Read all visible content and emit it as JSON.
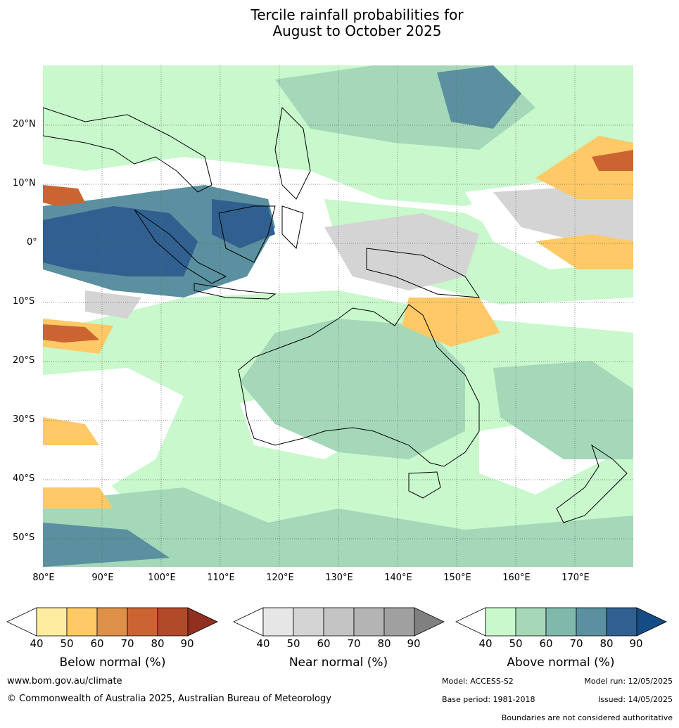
{
  "title_line1": "Tercile rainfall probabilities for",
  "title_line2": "August to October 2025",
  "map": {
    "lat_labels": [
      "20°N",
      "10°N",
      "0°",
      "10°S",
      "20°S",
      "30°S",
      "40°S",
      "50°S"
    ],
    "lon_labels": [
      "80°E",
      "90°E",
      "100°E",
      "110°E",
      "120°E",
      "130°E",
      "140°E",
      "150°E",
      "160°E",
      "170°E"
    ]
  },
  "colorbars": [
    {
      "title": "Below normal (%)",
      "ticks": [
        "40",
        "50",
        "60",
        "70",
        "80",
        "90"
      ],
      "colors": [
        "#ffffff",
        "#feeda0",
        "#fec966",
        "#de9048",
        "#cc6432",
        "#b04a28",
        "#913020"
      ]
    },
    {
      "title": "Near normal (%)",
      "ticks": [
        "40",
        "50",
        "60",
        "70",
        "80",
        "90"
      ],
      "colors": [
        "#ffffff",
        "#e6e6e6",
        "#d4d4d4",
        "#c4c4c4",
        "#b4b4b4",
        "#a0a0a0",
        "#808080"
      ]
    },
    {
      "title": "Above normal (%)",
      "ticks": [
        "40",
        "50",
        "60",
        "70",
        "80",
        "90"
      ],
      "colors": [
        "#ffffff",
        "#c8f8cc",
        "#a4d8b8",
        "#80b8ac",
        "#5a90a0",
        "#306090",
        "#144c86"
      ]
    }
  ],
  "footer": {
    "website": "www.bom.gov.au/climate",
    "copyright": "© Commonwealth of Australia 2025, Australian Bureau of Meteorology",
    "model": "Model: ACCESS-S2",
    "model_run": "Model run: 12/05/2025",
    "base_period": "Base period: 1981-2018",
    "issued": "Issued: 14/05/2025",
    "disclaimer": "Boundaries are not considered authoritative"
  }
}
